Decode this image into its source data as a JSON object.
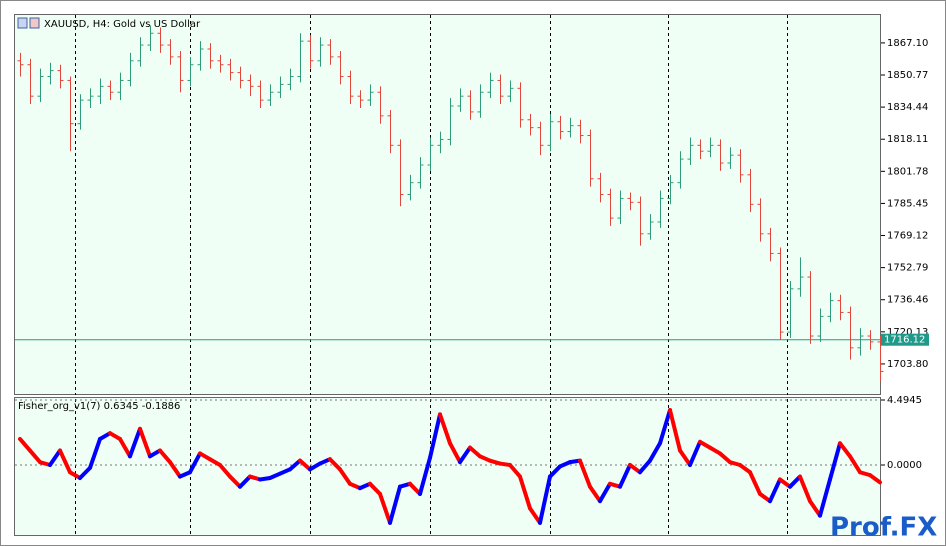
{
  "chart_data": [
    {
      "type": "ohlc",
      "title": "XAUUSD, H4:  Gold vs US Dollar",
      "up_color": "#2e9b7a",
      "down_color": "#e0463c",
      "background": "#f0fff5",
      "open": [
        1858,
        1856,
        1840,
        1850,
        1853,
        1848,
        1826,
        1838,
        1840,
        1845,
        1842,
        1848,
        1858,
        1866,
        1872,
        1866,
        1860,
        1848,
        1856,
        1864,
        1858,
        1856,
        1852,
        1848,
        1845,
        1838,
        1842,
        1846,
        1850,
        1868,
        1858,
        1866,
        1860,
        1850,
        1840,
        1838,
        1842,
        1830,
        1815,
        1790,
        1796,
        1805,
        1815,
        1818,
        1835,
        1840,
        1832,
        1842,
        1848,
        1840,
        1844,
        1828,
        1824,
        1815,
        1827,
        1822,
        1825,
        1820,
        1798,
        1790,
        1778,
        1788,
        1786,
        1770,
        1776,
        1788,
        1796,
        1808,
        1815,
        1812,
        1815,
        1806,
        1810,
        1800,
        1785,
        1770,
        1760,
        1720,
        1742,
        1748,
        1718,
        1728,
        1736,
        1730,
        1712,
        1718,
        1715
      ],
      "high": [
        1862,
        1859,
        1854,
        1857,
        1856,
        1850,
        1841,
        1844,
        1849,
        1848,
        1852,
        1862,
        1870,
        1876,
        1875,
        1869,
        1863,
        1860,
        1868,
        1867,
        1861,
        1859,
        1855,
        1851,
        1848,
        1846,
        1850,
        1854,
        1872,
        1871,
        1870,
        1869,
        1863,
        1853,
        1843,
        1846,
        1845,
        1833,
        1818,
        1800,
        1809,
        1819,
        1822,
        1839,
        1844,
        1843,
        1846,
        1852,
        1851,
        1848,
        1847,
        1831,
        1827,
        1831,
        1830,
        1829,
        1828,
        1823,
        1801,
        1793,
        1792,
        1791,
        1789,
        1780,
        1792,
        1800,
        1812,
        1819,
        1818,
        1819,
        1818,
        1814,
        1813,
        1803,
        1788,
        1773,
        1763,
        1746,
        1758,
        1751,
        1732,
        1740,
        1739,
        1733,
        1722,
        1721,
        1718
      ],
      "low": [
        1850,
        1836,
        1837,
        1846,
        1844,
        1812,
        1823,
        1834,
        1836,
        1838,
        1838,
        1845,
        1855,
        1863,
        1862,
        1856,
        1842,
        1845,
        1853,
        1854,
        1852,
        1848,
        1844,
        1840,
        1834,
        1835,
        1839,
        1843,
        1847,
        1854,
        1855,
        1856,
        1846,
        1836,
        1834,
        1835,
        1826,
        1811,
        1784,
        1787,
        1793,
        1802,
        1811,
        1815,
        1832,
        1828,
        1829,
        1839,
        1836,
        1837,
        1824,
        1820,
        1810,
        1812,
        1818,
        1819,
        1816,
        1794,
        1786,
        1774,
        1775,
        1782,
        1764,
        1767,
        1773,
        1785,
        1793,
        1805,
        1808,
        1809,
        1802,
        1803,
        1796,
        1781,
        1766,
        1756,
        1716,
        1717,
        1738,
        1714,
        1715,
        1725,
        1726,
        1706,
        1708,
        1711,
        1695
      ],
      "close": [
        1856,
        1840,
        1850,
        1853,
        1848,
        1826,
        1838,
        1840,
        1845,
        1842,
        1848,
        1858,
        1866,
        1872,
        1866,
        1860,
        1848,
        1856,
        1864,
        1858,
        1856,
        1852,
        1848,
        1845,
        1838,
        1842,
        1846,
        1850,
        1868,
        1858,
        1866,
        1860,
        1850,
        1840,
        1838,
        1842,
        1830,
        1815,
        1790,
        1796,
        1805,
        1815,
        1818,
        1835,
        1840,
        1832,
        1842,
        1848,
        1840,
        1844,
        1828,
        1824,
        1815,
        1827,
        1822,
        1825,
        1820,
        1798,
        1790,
        1778,
        1788,
        1786,
        1770,
        1776,
        1788,
        1796,
        1808,
        1815,
        1812,
        1815,
        1806,
        1810,
        1800,
        1785,
        1770,
        1760,
        1720,
        1742,
        1748,
        1718,
        1728,
        1736,
        1730,
        1712,
        1718,
        1715,
        1700
      ],
      "current_price": 1716.12,
      "current_price_color": "#1f9a8a",
      "ylim": [
        1688,
        1881.8
      ],
      "yticks": [
        {
          "value": 1867.1,
          "label": "1867.10"
        },
        1850.77,
        1834.44,
        1818.11,
        1801.78,
        1785.45,
        1769.12,
        1752.79,
        1736.46,
        1720.13,
        {
          "value": 1703.8,
          "label": "1703.80"
        }
      ]
    },
    {
      "type": "line",
      "title": "Fisher_org_v1(7) 0.6345 -0.1886",
      "up_color": "#0000ff",
      "down_color": "#ff0000",
      "background": "#f0fff5",
      "values": [
        1.8,
        1.0,
        0.2,
        0.0,
        1.0,
        -0.5,
        -0.9,
        -0.2,
        1.8,
        2.2,
        1.8,
        0.6,
        2.5,
        0.6,
        1.0,
        0.2,
        -0.8,
        -0.5,
        0.8,
        0.4,
        0.0,
        -0.8,
        -1.5,
        -0.8,
        -1.0,
        -0.9,
        -0.6,
        -0.3,
        0.3,
        -0.3,
        0.1,
        0.4,
        -0.3,
        -1.3,
        -1.6,
        -1.3,
        -2.0,
        -4.0,
        -1.5,
        -1.3,
        -2.0,
        0.5,
        3.5,
        1.5,
        0.2,
        1.2,
        0.6,
        0.3,
        0.1,
        0.0,
        -0.8,
        -3.0,
        -4.0,
        -0.8,
        -0.1,
        0.2,
        0.3,
        -1.5,
        -2.5,
        -1.3,
        -1.5,
        0.0,
        -0.5,
        0.3,
        1.5,
        3.8,
        1.0,
        0.0,
        1.6,
        1.2,
        0.8,
        0.2,
        0.0,
        -0.5,
        -2.0,
        -2.5,
        -1.0,
        -1.5,
        -0.8,
        -2.5,
        -3.5,
        -1.0,
        1.5,
        0.6,
        -0.5,
        -0.7,
        -1.2
      ],
      "ylim": [
        -4.84,
        4.633
      ],
      "yticks": [
        4.4945,
        {
          "value": 0,
          "label": "0.0000"
        }
      ]
    }
  ],
  "watermark": "Prof.FX"
}
